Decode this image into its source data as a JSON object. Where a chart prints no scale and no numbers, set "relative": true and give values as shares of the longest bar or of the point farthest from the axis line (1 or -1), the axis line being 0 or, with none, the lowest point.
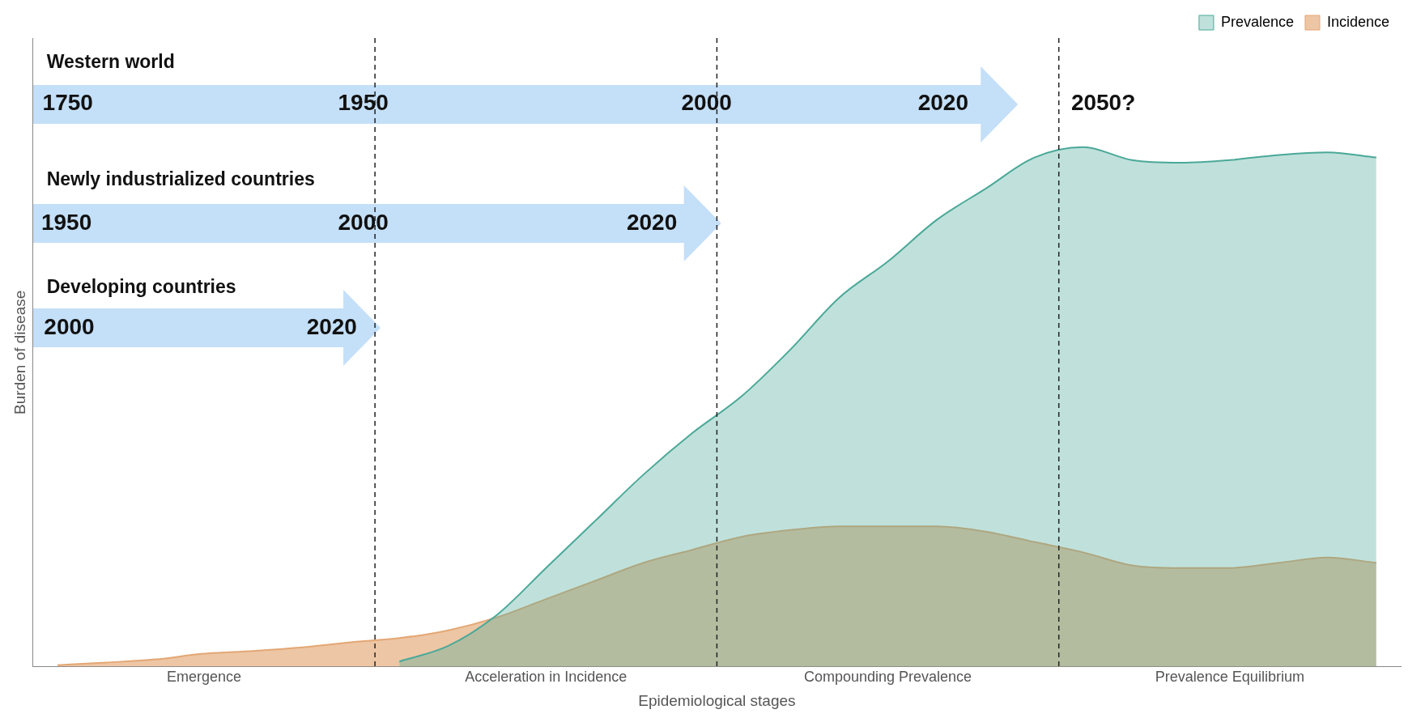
{
  "chart_data": {
    "type": "area",
    "relative": true,
    "xlabel": "Epidemiological stages",
    "ylabel": "Burden of disease",
    "categories": [
      null,
      null,
      null,
      "Emergence",
      null,
      null,
      null,
      null,
      null,
      null,
      "Acceleration in Incidence",
      null,
      null,
      null,
      null,
      null,
      null,
      "Compounding Prevalence",
      null,
      null,
      null,
      null,
      null,
      null,
      "Prevalence Equilibrium",
      null,
      null,
      null
    ],
    "series": [
      {
        "name": "Prevalence",
        "color": "#4aa898",
        "values": [
          null,
          null,
          null,
          null,
          null,
          null,
          null,
          0.01,
          0.04,
          0.1,
          0.19,
          0.28,
          0.37,
          0.45,
          0.52,
          0.61,
          0.71,
          0.78,
          0.86,
          0.92,
          0.98,
          1,
          0.975,
          0.97,
          0.975,
          0.985,
          0.99,
          0.98
        ]
      },
      {
        "name": "Incidence",
        "color": "#e3a774",
        "values": [
          0.003,
          0.008,
          0.014,
          0.025,
          0.03,
          0.037,
          0.047,
          0.055,
          0.07,
          0.095,
          0.13,
          0.165,
          0.2,
          0.225,
          0.25,
          0.263,
          0.27,
          0.27,
          0.27,
          0.26,
          0.24,
          0.22,
          0.195,
          0.19,
          0.19,
          0.2,
          0.21,
          0.2
        ]
      }
    ],
    "annotations": [
      "Western world",
      "1750",
      "1950",
      "2000",
      "2020",
      "2050?",
      "Newly industrialized countries",
      "1950",
      "2000",
      "2020",
      "Developing countries",
      "2000",
      "2020"
    ],
    "grid": false,
    "legend": "top right",
    "marker": "none"
  }
}
